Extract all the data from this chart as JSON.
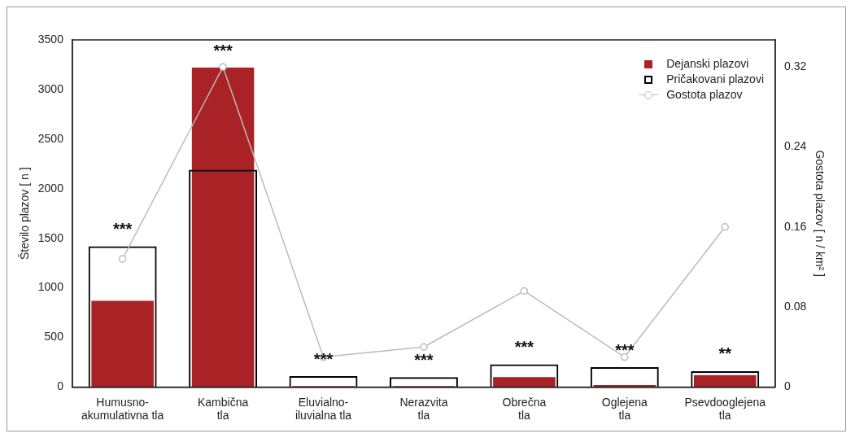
{
  "chart_data": {
    "type": "bar",
    "categories": [
      "Humusno-\nakumulativna tla",
      "Kambična\ntla",
      "Eluvialno-\niluvialna tla",
      "Nerazvita\ntla",
      "Obrečna\ntla",
      "Oglejena\ntla",
      "Psevdooglejena\ntla"
    ],
    "ylabel": "Število plazov [ n ]",
    "y2label": "Gostota plazov [ n / km² ]",
    "ylim": [
      0,
      3500
    ],
    "yticks": [
      0,
      500,
      1000,
      1500,
      2000,
      2500,
      3000,
      3500
    ],
    "y2lim": [
      0,
      0.347
    ],
    "y2ticks": [
      0,
      0.08,
      0.16,
      0.24,
      0.32
    ],
    "grid": false,
    "legend": "top right",
    "series": [
      {
        "name": "Dejanski plazovi",
        "color": "#a82226",
        "values": [
          870,
          3220,
          10,
          10,
          100,
          20,
          120
        ]
      },
      {
        "name": "Pričakovani plazovi",
        "color": "#000000",
        "values": [
          1420,
          2190,
          110,
          100,
          230,
          200,
          160
        ]
      },
      {
        "name": "Gostota plazov",
        "type": "line",
        "axis": "y2",
        "color": "#bbbbbb",
        "marker": "circle",
        "values": [
          0.128,
          0.32,
          0.03,
          0.04,
          0.096,
          0.03,
          0.16
        ]
      }
    ],
    "annotations": [
      "***",
      "***",
      "***",
      "***",
      "***",
      "***",
      "**"
    ]
  }
}
